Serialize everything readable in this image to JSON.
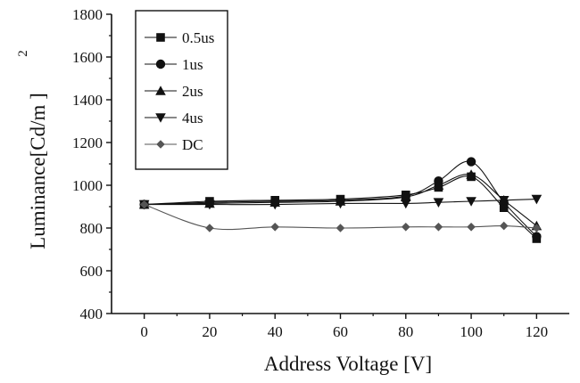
{
  "chart_data": {
    "type": "line",
    "title": "",
    "xlabel": "Address Voltage [V]",
    "ylabel": "Luminance[Cd/m ]",
    "ylabel_superscript": "2",
    "x": [
      0,
      20,
      40,
      60,
      80,
      90,
      100,
      110,
      120
    ],
    "xlim": [
      -10,
      130
    ],
    "ylim": [
      400,
      1800
    ],
    "x_ticks": [
      0,
      20,
      40,
      60,
      80,
      100,
      120
    ],
    "y_ticks": [
      400,
      600,
      800,
      1000,
      1200,
      1400,
      1600,
      1800
    ],
    "grid": false,
    "legend_position": "top-left",
    "series": [
      {
        "name": "0.5us",
        "marker": "square",
        "color": "#111111",
        "values": [
          910,
          925,
          930,
          935,
          955,
          990,
          1040,
          895,
          750
        ]
      },
      {
        "name": "1us",
        "marker": "circle",
        "color": "#111111",
        "values": [
          910,
          920,
          925,
          930,
          950,
          1020,
          1110,
          920,
          760
        ]
      },
      {
        "name": "2us",
        "marker": "triangle-up",
        "color": "#111111",
        "values": [
          910,
          915,
          920,
          925,
          945,
          1000,
          1050,
          930,
          810
        ]
      },
      {
        "name": "4us",
        "marker": "triangle-down",
        "color": "#111111",
        "values": [
          910,
          910,
          910,
          915,
          915,
          920,
          925,
          930,
          935
        ]
      },
      {
        "name": "DC",
        "marker": "diamond",
        "color": "#555555",
        "values": [
          910,
          800,
          805,
          800,
          805,
          805,
          805,
          810,
          800
        ]
      }
    ]
  }
}
